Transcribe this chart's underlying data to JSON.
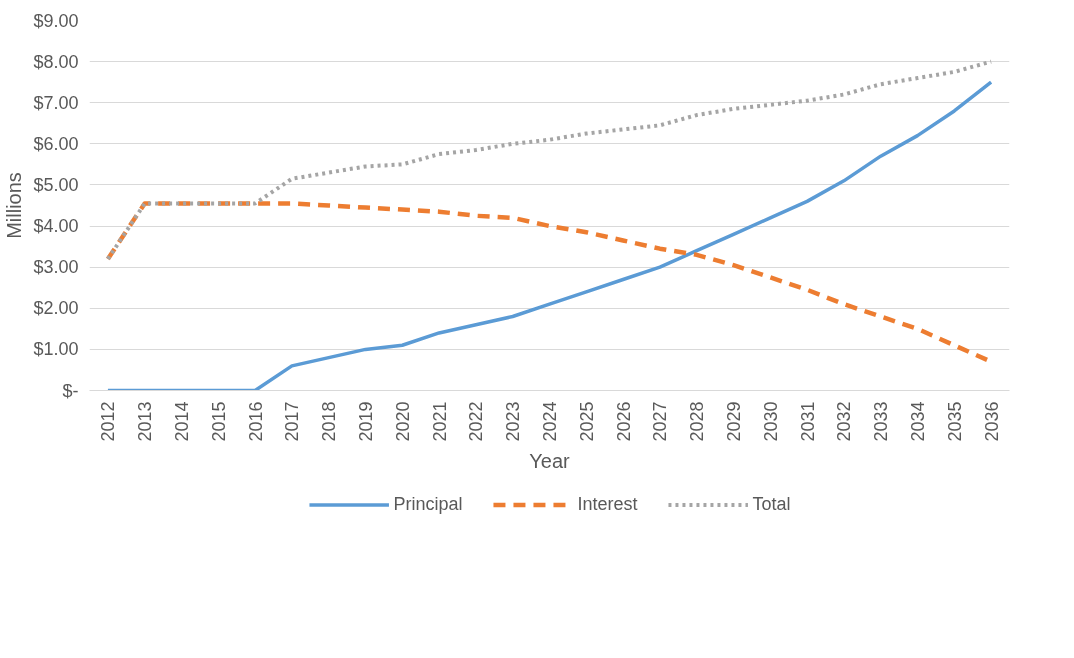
{
  "chart_data": {
    "type": "line",
    "xlabel": "Year",
    "ylabel": "Millions",
    "categories": [
      "2012",
      "2013",
      "2014",
      "2015",
      "2016",
      "2017",
      "2018",
      "2019",
      "2020",
      "2021",
      "2022",
      "2023",
      "2024",
      "2025",
      "2026",
      "2027",
      "2028",
      "2029",
      "2030",
      "2031",
      "2032",
      "2033",
      "2034",
      "2035",
      "2036"
    ],
    "series": [
      {
        "name": "Principal",
        "color": "#5b9bd5",
        "line_style": "solid",
        "values": [
          0,
          0,
          0,
          0,
          0,
          0.6,
          0.8,
          1.0,
          1.1,
          1.4,
          1.6,
          1.8,
          2.1,
          2.4,
          2.7,
          3.0,
          3.4,
          3.8,
          4.2,
          4.6,
          5.1,
          5.7,
          6.2,
          6.8,
          7.5
        ]
      },
      {
        "name": "Interest",
        "color": "#ed7d31",
        "line_style": "dashed",
        "values": [
          3.2,
          4.55,
          4.55,
          4.55,
          4.55,
          4.55,
          4.5,
          4.45,
          4.4,
          4.35,
          4.25,
          4.2,
          4.0,
          3.85,
          3.65,
          3.45,
          3.3,
          3.05,
          2.75,
          2.45,
          2.1,
          1.8,
          1.5,
          1.1,
          0.7
        ]
      },
      {
        "name": "Total",
        "color": "#a5a5a5",
        "line_style": "dotted",
        "values": [
          3.2,
          4.55,
          4.55,
          4.55,
          4.55,
          5.15,
          5.3,
          5.45,
          5.5,
          5.75,
          5.85,
          6.0,
          6.1,
          6.25,
          6.35,
          6.45,
          6.7,
          6.85,
          6.95,
          7.05,
          7.2,
          7.45,
          7.6,
          7.75,
          8.0
        ]
      }
    ],
    "ylim": [
      0,
      9
    ],
    "yticks": [
      {
        "value": 0,
        "label": "$-"
      },
      {
        "value": 1,
        "label": "$1.00"
      },
      {
        "value": 2,
        "label": "$2.00"
      },
      {
        "value": 3,
        "label": "$3.00"
      },
      {
        "value": 4,
        "label": "$4.00"
      },
      {
        "value": 5,
        "label": "$5.00"
      },
      {
        "value": 6,
        "label": "$6.00"
      },
      {
        "value": 7,
        "label": "$7.00"
      },
      {
        "value": 8,
        "label": "$8.00"
      },
      {
        "value": 9,
        "label": "$9.00"
      }
    ],
    "grid": "y",
    "legend": "bottom",
    "marker": "none"
  }
}
